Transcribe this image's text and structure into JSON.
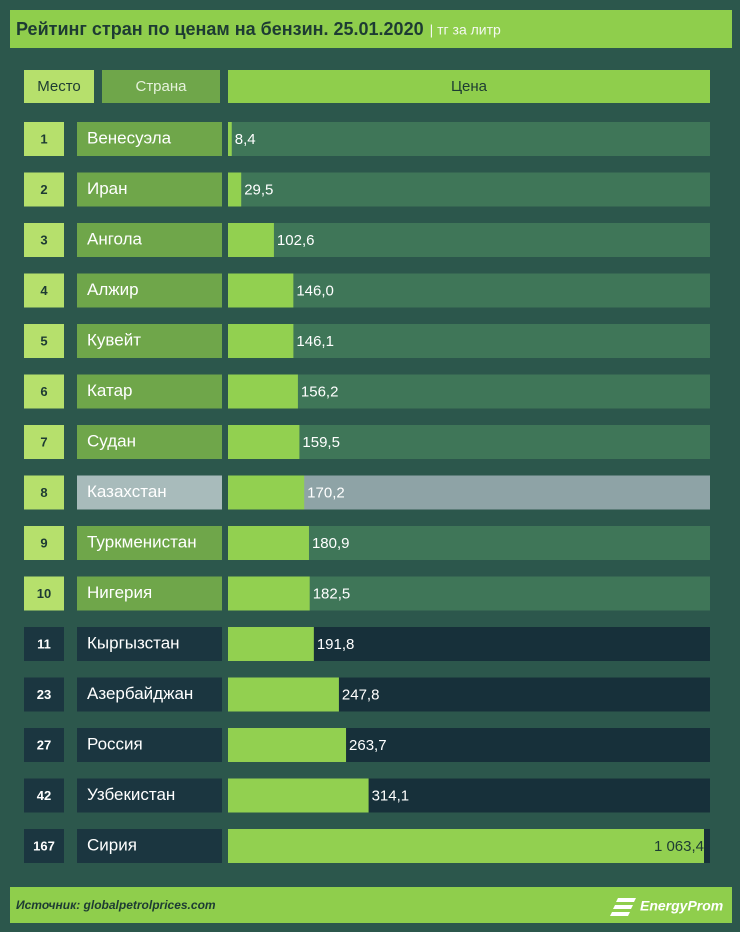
{
  "chart_data": {
    "type": "bar",
    "title": "Рейтинг стран по ценам на бензин. 25.01.2020",
    "subtitle": "| тг за литр",
    "columns": [
      "Место",
      "Страна",
      "Цена"
    ],
    "ranks": [
      "1",
      "2",
      "3",
      "4",
      "5",
      "6",
      "7",
      "8",
      "9",
      "10",
      "11",
      "23",
      "27",
      "42",
      "167"
    ],
    "categories": [
      "Венесуэла",
      "Иран",
      "Ангола",
      "Алжир",
      "Кувейт",
      "Катар",
      "Судан",
      "Казахстан",
      "Туркменистан",
      "Нигерия",
      "Кыргызстан",
      "Азербайджан",
      "Россия",
      "Узбекистан",
      "Сирия"
    ],
    "values": [
      8.4,
      29.5,
      102.6,
      146.0,
      146.1,
      156.2,
      159.5,
      170.2,
      180.9,
      182.5,
      191.8,
      247.8,
      263.7,
      314.1,
      1063.4
    ],
    "value_labels": [
      "8,4",
      "29,5",
      "102,6",
      "146,0",
      "146,1",
      "156,2",
      "159,5",
      "170,2",
      "180,9",
      "182,5",
      "191,8",
      "247,8",
      "263,7",
      "314,1",
      "1 063,4"
    ],
    "color": "#92d050",
    "source": "Источник: globalpetrolprices.com",
    "logo": "EnergyProm"
  }
}
